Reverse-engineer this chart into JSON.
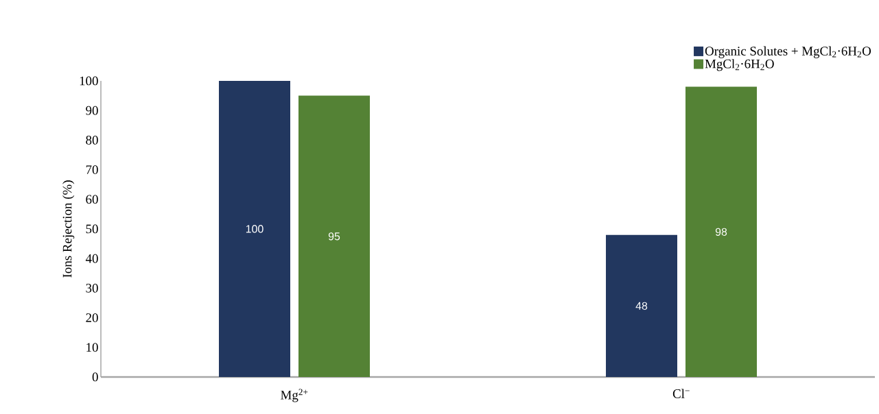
{
  "chart_data": {
    "type": "bar",
    "ylabel": "Ions Rejection (%)",
    "categories": [
      "Mg$^{2+}$",
      "Cl$^{−}$"
    ],
    "series": [
      {
        "name": "Organic Solutes + MgCl$_{2}$·6H$_{2}$O",
        "color": "#22375f",
        "values": [
          100,
          48
        ]
      },
      {
        "name": "MgCl$_{2}$·6H$_{2}$O",
        "color": "#548235",
        "values": [
          95,
          98
        ]
      }
    ],
    "ylim": [
      0,
      100
    ],
    "yticks": [
      0,
      10,
      20,
      30,
      40,
      50,
      60,
      70,
      80,
      90,
      100
    ],
    "data_labels": true,
    "legend": "top right"
  }
}
